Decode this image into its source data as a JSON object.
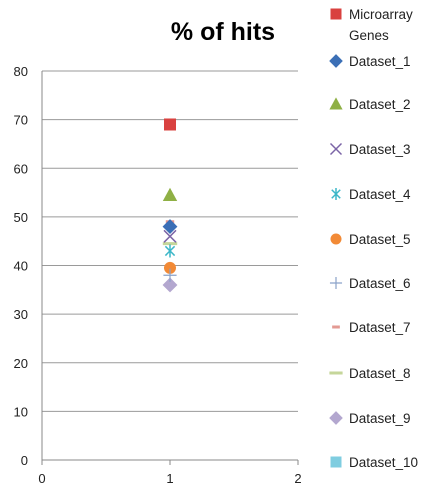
{
  "chart_data": {
    "type": "scatter",
    "title": "% of hits",
    "xlabel": "",
    "ylabel": "",
    "xlim": [
      0,
      2
    ],
    "ylim": [
      0,
      80
    ],
    "x_ticks": [
      0,
      1,
      2
    ],
    "y_ticks": [
      0,
      10,
      20,
      30,
      40,
      50,
      60,
      70,
      80
    ],
    "grid": "horizontal",
    "legend_position": "right",
    "series": [
      {
        "name": "Microarray Genes",
        "name_lines": [
          "Microarray",
          "Genes"
        ],
        "x": 1,
        "y": 69,
        "marker": "square",
        "color": "#d9413f"
      },
      {
        "name": "Dataset_1",
        "name_lines": [
          "Dataset_1"
        ],
        "x": 1,
        "y": 48,
        "marker": "diamond",
        "color": "#3b6fb6"
      },
      {
        "name": "Dataset_2",
        "name_lines": [
          "Dataset_2"
        ],
        "x": 1,
        "y": 54.5,
        "marker": "triangle",
        "color": "#8fb045"
      },
      {
        "name": "Dataset_3",
        "name_lines": [
          "Dataset_3"
        ],
        "x": 1,
        "y": 46,
        "marker": "x",
        "color": "#7b64a6"
      },
      {
        "name": "Dataset_4",
        "name_lines": [
          "Dataset_4"
        ],
        "x": 1,
        "y": 43,
        "marker": "star",
        "color": "#3cb7c8"
      },
      {
        "name": "Dataset_5",
        "name_lines": [
          "Dataset_5"
        ],
        "x": 1,
        "y": 39.5,
        "marker": "circle",
        "color": "#f28a36"
      },
      {
        "name": "Dataset_6",
        "name_lines": [
          "Dataset_6"
        ],
        "x": 1,
        "y": 38,
        "marker": "plus",
        "color": "#8aa2c9"
      },
      {
        "name": "Dataset_7",
        "name_lines": [
          "Dataset_7"
        ],
        "x": 1,
        "y": 49,
        "marker": "dash",
        "color": "#e39a93"
      },
      {
        "name": "Dataset_8",
        "name_lines": [
          "Dataset_8"
        ],
        "x": 1,
        "y": 44.5,
        "marker": "line",
        "color": "#c5d69a"
      },
      {
        "name": "Dataset_9",
        "name_lines": [
          "Dataset_9"
        ],
        "x": 1,
        "y": 36,
        "marker": "diamond",
        "color": "#b3a7cf"
      },
      {
        "name": "Dataset_10",
        "name_lines": [
          "Dataset_10"
        ],
        "x": 1,
        "y": 42,
        "marker": "square",
        "color": "#7fcde0"
      }
    ]
  }
}
